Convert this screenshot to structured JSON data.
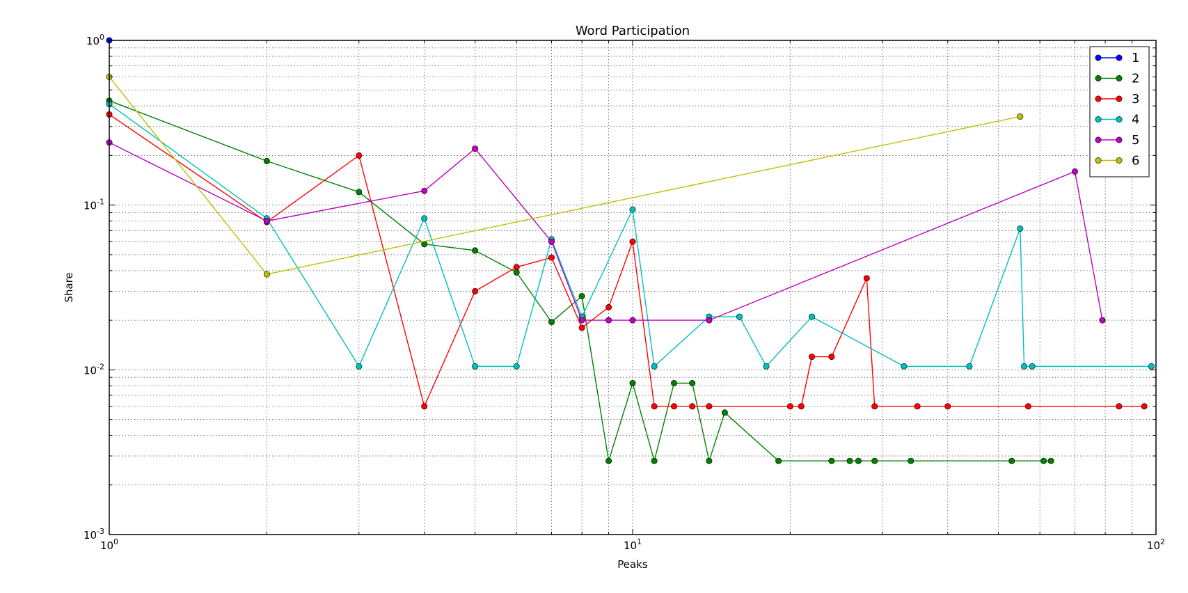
{
  "chart_data": {
    "type": "line",
    "title": "Word Participation",
    "xlabel": "Peaks",
    "ylabel": "Share",
    "x_scale": "log",
    "y_scale": "log",
    "xlim": [
      1,
      100
    ],
    "ylim": [
      0.001,
      1
    ],
    "x_ticks": [
      {
        "base": "10",
        "exp": "0",
        "value": 1
      },
      {
        "base": "10",
        "exp": "1",
        "value": 10
      },
      {
        "base": "10",
        "exp": "2",
        "value": 100
      }
    ],
    "y_ticks": [
      {
        "base": "10",
        "exp": "0",
        "value": 1
      },
      {
        "base": "10",
        "exp": "-1",
        "value": 0.1
      },
      {
        "base": "10",
        "exp": "-2",
        "value": 0.01
      },
      {
        "base": "10",
        "exp": "-3",
        "value": 0.001
      }
    ],
    "grid": true,
    "legend_position": "top-right",
    "series": [
      {
        "name": "1",
        "color": "#0000ff",
        "points": [
          [
            1,
            1.0
          ]
        ]
      },
      {
        "name": "2",
        "color": "#007f00",
        "points": [
          [
            1,
            0.43
          ],
          [
            2,
            0.185
          ],
          [
            3,
            0.12
          ],
          [
            4,
            0.058
          ],
          [
            5,
            0.053
          ],
          [
            6,
            0.039
          ],
          [
            7,
            0.0195
          ],
          [
            8,
            0.028
          ],
          [
            9,
            0.0028
          ],
          [
            10,
            0.0083
          ],
          [
            11,
            0.0028
          ],
          [
            12,
            0.0083
          ],
          [
            13,
            0.0083
          ],
          [
            14,
            0.0028
          ],
          [
            15,
            0.0055
          ],
          [
            19,
            0.0028
          ],
          [
            24,
            0.0028
          ],
          [
            26,
            0.0028
          ],
          [
            27,
            0.0028
          ],
          [
            29,
            0.0028
          ],
          [
            34,
            0.0028
          ],
          [
            53,
            0.0028
          ],
          [
            61,
            0.0028
          ],
          [
            63,
            0.0028
          ]
        ]
      },
      {
        "name": "3",
        "color": "#ff0000",
        "points": [
          [
            1,
            0.355
          ],
          [
            2,
            0.079
          ],
          [
            3,
            0.2
          ],
          [
            4,
            0.006
          ],
          [
            5,
            0.03
          ],
          [
            6,
            0.042
          ],
          [
            7,
            0.048
          ],
          [
            8,
            0.018
          ],
          [
            9,
            0.024
          ],
          [
            10,
            0.06
          ],
          [
            11,
            0.006
          ],
          [
            12,
            0.006
          ],
          [
            13,
            0.006
          ],
          [
            14,
            0.006
          ],
          [
            20,
            0.006
          ],
          [
            21,
            0.006
          ],
          [
            22,
            0.012
          ],
          [
            24,
            0.012
          ],
          [
            28,
            0.036
          ],
          [
            29,
            0.006
          ],
          [
            35,
            0.006
          ],
          [
            40,
            0.006
          ],
          [
            57,
            0.006
          ],
          [
            85,
            0.006
          ],
          [
            95,
            0.006
          ]
        ]
      },
      {
        "name": "4",
        "color": "#00bfbf",
        "points": [
          [
            1,
            0.41
          ],
          [
            2,
            0.083
          ],
          [
            3,
            0.0105
          ],
          [
            4,
            0.083
          ],
          [
            5,
            0.0105
          ],
          [
            6,
            0.0105
          ],
          [
            7,
            0.062
          ],
          [
            8,
            0.021
          ],
          [
            10,
            0.094
          ],
          [
            11,
            0.0105
          ],
          [
            14,
            0.021
          ],
          [
            16,
            0.021
          ],
          [
            18,
            0.0105
          ],
          [
            22,
            0.021
          ],
          [
            33,
            0.0105
          ],
          [
            44,
            0.0105
          ],
          [
            55,
            0.072
          ],
          [
            56,
            0.0105
          ],
          [
            58,
            0.0105
          ],
          [
            98,
            0.0105
          ]
        ]
      },
      {
        "name": "5",
        "color": "#bf00bf",
        "points": [
          [
            1,
            0.24
          ],
          [
            2,
            0.08
          ],
          [
            4,
            0.122
          ],
          [
            5,
            0.22
          ],
          [
            7,
            0.06
          ],
          [
            8,
            0.02
          ],
          [
            9,
            0.02
          ],
          [
            10,
            0.02
          ],
          [
            14,
            0.02
          ],
          [
            70,
            0.16
          ],
          [
            79,
            0.02
          ]
        ]
      },
      {
        "name": "6",
        "color": "#bfbf00",
        "points": [
          [
            1,
            0.6
          ],
          [
            2,
            0.038
          ],
          [
            55,
            0.345
          ]
        ]
      }
    ]
  }
}
